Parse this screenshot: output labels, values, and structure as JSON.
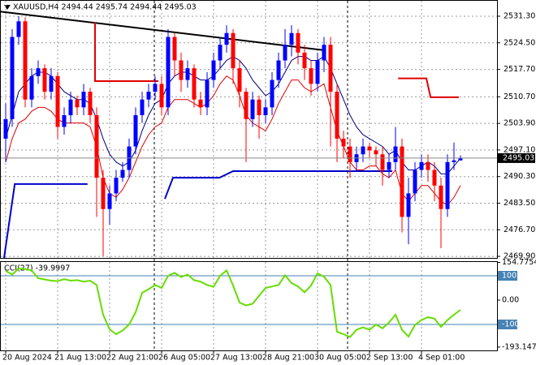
{
  "chart_data": [
    {
      "type": "candlestick",
      "title": "XAUUSD,H4 2494.44 2495.74 2494.44 2495.03",
      "up_color": "#0000ff",
      "down_color": "#ff0000",
      "xlim": [
        -0.875,
        75.625
      ],
      "ylim": [
        2469.5,
        2535.45
      ],
      "xticks": [
        {
          "value": 0,
          "label": "20 Aug 2024"
        },
        {
          "value": 8,
          "label": "21 Aug 13:00"
        },
        {
          "value": 16,
          "label": "22 Aug 21:00"
        },
        {
          "value": 24,
          "label": "26 Aug 05:00"
        },
        {
          "value": 32,
          "label": "27 Aug 13:00"
        },
        {
          "value": 40,
          "label": "28 Aug 21:00"
        },
        {
          "value": 48,
          "label": "30 Aug 05:00"
        },
        {
          "value": 56,
          "label": "2 Sep 13:00"
        },
        {
          "value": 64,
          "label": "4 Sep 01:00"
        }
      ],
      "yticks": [
        {
          "value": 2531.3,
          "label": "2531.30"
        },
        {
          "value": 2524.5,
          "label": "2524.50"
        },
        {
          "value": 2517.7,
          "label": "2517.70"
        },
        {
          "value": 2510.7,
          "label": "2510.70"
        },
        {
          "value": 2503.9,
          "label": "2503.90"
        },
        {
          "value": 2497.1,
          "label": "2497.10"
        },
        {
          "value": 2490.3,
          "label": "2490.30"
        },
        {
          "value": 2483.5,
          "label": "2483.50"
        },
        {
          "value": 2476.7,
          "label": "2476.70"
        },
        {
          "value": 2469.9,
          "label": "2469.90"
        }
      ],
      "grid": true,
      "last_price": 2495.03,
      "open": [
        2500,
        2505,
        2526,
        2530,
        2510,
        2516,
        2518,
        2512,
        2516,
        2503,
        2506,
        2510,
        2508,
        2512,
        2506,
        2490,
        2482,
        2486,
        2490,
        2492,
        2498,
        2506,
        2510,
        2512,
        2514,
        2508,
        2526,
        2520,
        2515,
        2518,
        2510,
        2508,
        2515,
        2520,
        2524,
        2527,
        2518,
        2512,
        2505,
        2510,
        2506,
        2508,
        2515,
        2520,
        2524,
        2527,
        2522,
        2518,
        2514,
        2520,
        2524,
        2512,
        2500,
        2498,
        2494,
        2496,
        2498,
        2497,
        2496,
        2492,
        2494,
        2498,
        2480,
        2486,
        2492,
        2494,
        2492,
        2488,
        2482,
        2494,
        2494.44
      ],
      "high": [
        2509,
        2528,
        2531.3,
        2531,
        2518,
        2520,
        2519,
        2518,
        2517,
        2508,
        2512,
        2511,
        2514,
        2513,
        2508,
        2492,
        2488,
        2492,
        2494,
        2500,
        2508,
        2512,
        2514,
        2516,
        2516,
        2528,
        2527,
        2522,
        2520,
        2519,
        2512,
        2517,
        2522,
        2526,
        2529,
        2528,
        2520,
        2513,
        2512,
        2511,
        2510,
        2517,
        2522,
        2528,
        2529,
        2528,
        2524,
        2520,
        2522,
        2526,
        2526,
        2514,
        2502,
        2500,
        2498,
        2500,
        2499,
        2498,
        2498,
        2496,
        2503,
        2500,
        2490,
        2494,
        2496,
        2496,
        2494,
        2490,
        2496,
        2499,
        2495.74
      ],
      "low": [
        2494,
        2503,
        2524,
        2508,
        2508,
        2514,
        2510,
        2510,
        2500,
        2501,
        2504,
        2506,
        2506,
        2504,
        2480,
        2470,
        2478,
        2484,
        2489,
        2490,
        2496,
        2504,
        2508,
        2510,
        2506,
        2506,
        2516,
        2512,
        2513,
        2508,
        2506,
        2506,
        2513,
        2518,
        2522,
        2514,
        2508,
        2494,
        2503,
        2500,
        2504,
        2506,
        2513,
        2518,
        2521,
        2519,
        2515,
        2511,
        2512,
        2517,
        2498,
        2494,
        2495,
        2490,
        2492,
        2494,
        2495,
        2493,
        2488,
        2490,
        2492,
        2476,
        2473,
        2484,
        2490,
        2489,
        2484,
        2472,
        2480,
        2492,
        2494.44
      ],
      "close": [
        2505,
        2526,
        2530,
        2510,
        2516,
        2518,
        2512,
        2516,
        2503,
        2506,
        2510,
        2508,
        2512,
        2506,
        2490,
        2482,
        2486,
        2490,
        2492,
        2498,
        2506,
        2510,
        2512,
        2514,
        2508,
        2526,
        2520,
        2515,
        2518,
        2510,
        2508,
        2515,
        2520,
        2524,
        2527,
        2518,
        2512,
        2505,
        2510,
        2506,
        2508,
        2515,
        2520,
        2524,
        2527,
        2522,
        2518,
        2514,
        2520,
        2524,
        2512,
        2500,
        2498,
        2494,
        2496,
        2498,
        2497,
        2496,
        2492,
        2494,
        2498,
        2480,
        2486,
        2492,
        2494,
        2492,
        2488,
        2482,
        2494,
        2494.44,
        2495.03
      ],
      "series": [
        {
          "color": "#000080",
          "values": [
            2500,
            2506,
            2512,
            2514,
            2516,
            2517,
            2517,
            2516,
            2514,
            2512,
            2511,
            2510,
            2510,
            2509,
            2505,
            2500,
            2496,
            2494,
            2493,
            2494,
            2497,
            2502,
            2506,
            2509,
            2510,
            2514,
            2516,
            2517,
            2517,
            2516,
            2515,
            2515,
            2516,
            2518,
            2520,
            2521,
            2520,
            2518,
            2515,
            2513,
            2511,
            2512,
            2514,
            2517,
            2520,
            2521,
            2521,
            2520,
            2520,
            2521,
            2518,
            2514,
            2510,
            2506,
            2503,
            2501,
            2500,
            2499,
            2498,
            2496,
            2497,
            2494,
            2492,
            2492,
            2493,
            2494,
            2493,
            2491,
            2491,
            2493,
            2495
          ]
        },
        {
          "color": "#e00000",
          "values": [
            2494,
            2500,
            2504,
            2505,
            2507,
            2508,
            2508,
            2507,
            2505,
            2504,
            2504,
            2504,
            2504,
            2503,
            2498,
            2490,
            2486,
            2485,
            2487,
            2490,
            2494,
            2498,
            2501,
            2503,
            2504,
            2508,
            2510,
            2510,
            2510,
            2509,
            2508,
            2509,
            2511,
            2514,
            2516,
            2515,
            2511,
            2506,
            2504,
            2503,
            2502,
            2505,
            2509,
            2512,
            2515,
            2515,
            2513,
            2512,
            2513,
            2514,
            2508,
            2502,
            2498,
            2494,
            2492,
            2492,
            2493,
            2493,
            2491,
            2490,
            2492,
            2486,
            2484,
            2486,
            2488,
            2488,
            2486,
            2484,
            2483,
            2485,
            2488
          ]
        }
      ],
      "trend_lines": [
        {
          "color": "#000000",
          "width": 2,
          "x": [
            -0.875,
            49.1
          ],
          "values": [
            2532.5,
            2522.6
          ]
        },
        {
          "color": "#e00000",
          "width": 2,
          "x": [
            13.75,
            13.75,
            23.5
          ],
          "values": [
            2529.7,
            2514.7,
            2514.7
          ]
        },
        {
          "color": "#e00000",
          "width": 2,
          "x": [
            60.4,
            64.75,
            65.4,
            69.75
          ],
          "values": [
            2515.4,
            2515.4,
            2510.6,
            2510.6
          ]
        },
        {
          "color": "#0000cc",
          "width": 2,
          "x": [
            -0.25,
            1.4,
            12.6
          ],
          "values": [
            2469.5,
            2488.4,
            2488.4
          ]
        },
        {
          "color": "#0000cc",
          "width": 2,
          "x": [
            24.5,
            25.75,
            32.9,
            35,
            59.5
          ],
          "values": [
            2484.6,
            2490,
            2490,
            2491.7,
            2491.7
          ]
        }
      ]
    },
    {
      "type": "line",
      "title": "CCI(27) -39.9997",
      "color": "#66dd00",
      "ylim": [
        -206.7,
        160
      ],
      "yticks": [
        154.7754,
        100,
        {
          "value": 0,
          "label": "0.00"
        },
        -100,
        -193.1476
      ],
      "levels": [
        100,
        -100
      ],
      "level_color": "#4682b4",
      "values": [
        120,
        105,
        130,
        128,
        122,
        90,
        85,
        80,
        78,
        86,
        80,
        82,
        76,
        80,
        62,
        -60,
        -120,
        -140,
        -125,
        -100,
        -50,
        30,
        45,
        62,
        50,
        100,
        112,
        95,
        105,
        82,
        76,
        62,
        55,
        100,
        122,
        60,
        -10,
        -22,
        -15,
        18,
        50,
        56,
        62,
        102,
        70,
        56,
        32,
        60,
        110,
        96,
        62,
        -130,
        -140,
        -152,
        -122,
        -112,
        -122,
        -100,
        -116,
        -92,
        -60,
        -122,
        -150,
        -102,
        -82,
        -70,
        -76,
        -110,
        -82,
        -60,
        -39.9997
      ]
    }
  ]
}
